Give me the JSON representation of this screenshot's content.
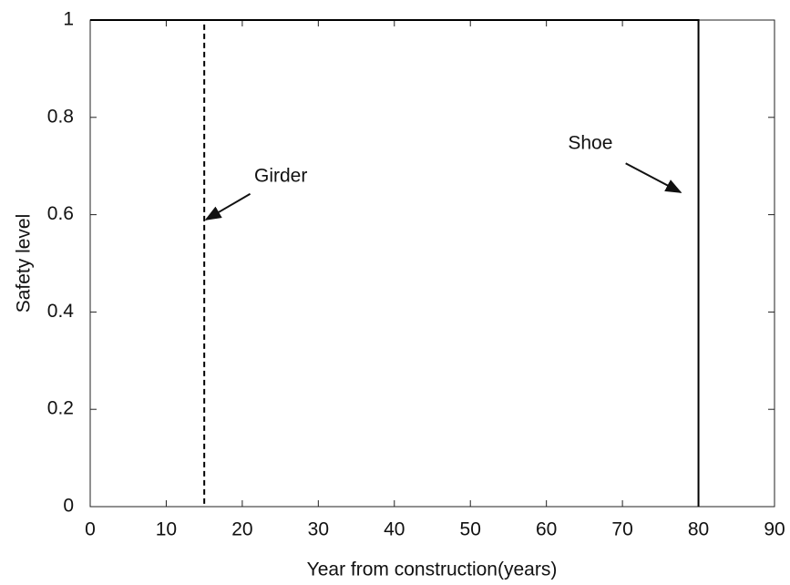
{
  "chart_data": {
    "type": "line",
    "xlabel": "Year from construction(years)",
    "ylabel": "Safety level",
    "series": [
      {
        "name": "Girder",
        "color": "#000000",
        "dash": "dashed",
        "x": [
          0,
          15,
          15
        ],
        "values": [
          1,
          1,
          0
        ]
      },
      {
        "name": "Shoe",
        "color": "#000000",
        "dash": "solid",
        "x": [
          0,
          80,
          80
        ],
        "values": [
          1,
          1,
          0
        ]
      }
    ],
    "annotations": [
      {
        "text": "Girder",
        "xy": [
          15,
          0.59
        ]
      },
      {
        "text": "Shoe",
        "xy": [
          77.4,
          0.646
        ]
      }
    ],
    "xlim": [
      0,
      90
    ],
    "xticks": [
      0,
      10,
      20,
      30,
      40,
      50,
      60,
      70,
      80,
      90
    ],
    "ylim": [
      0,
      1
    ],
    "yticks": [
      0,
      0.2,
      0.4,
      0.6,
      0.8,
      1
    ],
    "grid": false
  }
}
